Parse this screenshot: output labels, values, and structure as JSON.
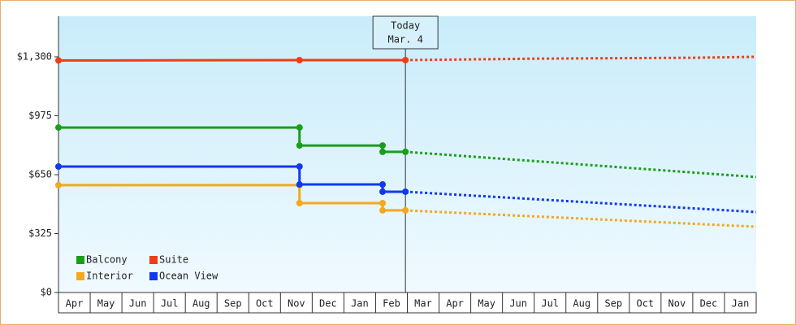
{
  "chart_data": {
    "type": "line",
    "xlim": [
      0,
      22
    ],
    "xticks": [
      {
        "value": 0.5,
        "label": "Apr"
      },
      {
        "value": 1.5,
        "label": "May"
      },
      {
        "value": 2.5,
        "label": "Jun"
      },
      {
        "value": 3.5,
        "label": "Jul"
      },
      {
        "value": 4.5,
        "label": "Aug"
      },
      {
        "value": 5.5,
        "label": "Sep"
      },
      {
        "value": 6.5,
        "label": "Oct"
      },
      {
        "value": 7.5,
        "label": "Nov"
      },
      {
        "value": 8.5,
        "label": "Dec"
      },
      {
        "value": 9.5,
        "label": "Jan"
      },
      {
        "value": 10.5,
        "label": "Feb"
      },
      {
        "value": 11.5,
        "label": "Mar"
      },
      {
        "value": 12.5,
        "label": "Apr"
      },
      {
        "value": 13.5,
        "label": "May"
      },
      {
        "value": 14.5,
        "label": "Jun"
      },
      {
        "value": 15.5,
        "label": "Jul"
      },
      {
        "value": 16.5,
        "label": "Aug"
      },
      {
        "value": 17.5,
        "label": "Sep"
      },
      {
        "value": 18.5,
        "label": "Oct"
      },
      {
        "value": 19.5,
        "label": "Nov"
      },
      {
        "value": 20.5,
        "label": "Dec"
      },
      {
        "value": 21.5,
        "label": "Jan"
      }
    ],
    "ylim": [
      0,
      1524
    ],
    "yticks": [
      {
        "value": 0,
        "label": "$0"
      },
      {
        "value": 325,
        "label": "$325"
      },
      {
        "value": 650,
        "label": "$650"
      },
      {
        "value": 975,
        "label": "$975"
      },
      {
        "value": 1300,
        "label": "$1,300"
      }
    ],
    "today": {
      "x": 10.94,
      "label": "Today",
      "date": "Mar. 4"
    },
    "legend": "lower left",
    "series": [
      {
        "name": "Balcony",
        "color": "#1a9e1a",
        "x": [
          0,
          7.6,
          7.6,
          10.22,
          10.22,
          10.94
        ],
        "values": [
          910,
          910,
          811,
          811,
          776,
          776
        ],
        "forecast_x": [
          10.94,
          22
        ],
        "forecast_values": [
          776,
          637
        ]
      },
      {
        "name": "Suite",
        "color": "#f03c14",
        "x": [
          0,
          7.6,
          10.94
        ],
        "values": [
          1280,
          1282,
          1282
        ],
        "forecast_x": [
          10.94,
          12.5,
          15,
          20,
          22
        ],
        "forecast_values": [
          1282,
          1285,
          1290,
          1295,
          1300
        ]
      },
      {
        "name": "Interior",
        "color": "#f5a81c",
        "x": [
          0,
          7.6,
          7.6,
          10.22,
          10.22,
          10.94
        ],
        "values": [
          592,
          592,
          493,
          493,
          453,
          453
        ],
        "forecast_x": [
          10.94,
          22
        ],
        "forecast_values": [
          453,
          363
        ]
      },
      {
        "name": "Ocean View",
        "color": "#1238f0",
        "x": [
          0,
          7.6,
          7.6,
          10.22,
          10.22,
          10.94
        ],
        "values": [
          695,
          695,
          596,
          596,
          556,
          556
        ],
        "forecast_x": [
          10.94,
          22
        ],
        "forecast_values": [
          556,
          444
        ]
      }
    ]
  }
}
